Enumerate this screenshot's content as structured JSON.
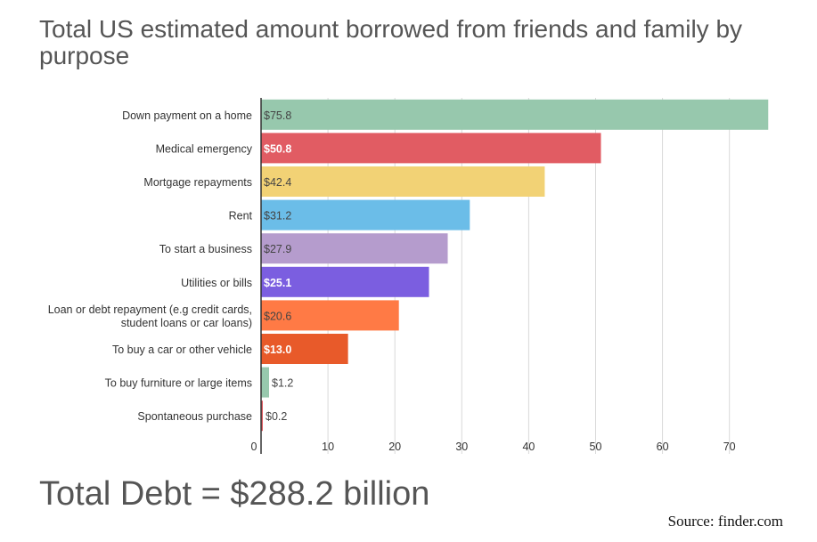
{
  "chart_data": {
    "type": "bar",
    "orientation": "horizontal",
    "title": "Total US estimated amount borrowed from friends and family by purpose",
    "categories": [
      "Down payment on a home",
      "Medical emergency",
      "Mortgage repayments",
      "Rent",
      "To start a business",
      "Utilities or bills",
      "Loan or debt repayment (e.g credit cards,\nstudent loans or car loans)",
      "To buy a car or other vehicle",
      "To buy furniture or large items",
      "Spontaneous purchase"
    ],
    "values": [
      75.8,
      50.8,
      42.4,
      31.2,
      27.9,
      25.1,
      20.6,
      13.0,
      1.2,
      0.2
    ],
    "data_labels": [
      "$75.8",
      "$50.8",
      "$42.4",
      "$31.2",
      "$27.9",
      "$25.1",
      "$20.6",
      "$13.0",
      "$1.2",
      "$0.2"
    ],
    "colors": [
      "#97c8ad",
      "#e15c63",
      "#f2d275",
      "#6bbde8",
      "#b59ccd",
      "#7b5ee0",
      "#ff7a45",
      "#e85a2a",
      "#97c8ad",
      "#e15c63"
    ],
    "label_colors": [
      "#444444",
      "#ffffff",
      "#444444",
      "#444444",
      "#444444",
      "#ffffff",
      "#444444",
      "#ffffff",
      "#444444",
      "#444444"
    ],
    "xlim": [
      0,
      78
    ],
    "xticks": [
      0,
      10,
      20,
      30,
      40,
      50,
      60,
      70
    ],
    "grid": true,
    "xlabel": "",
    "ylabel": ""
  },
  "footer": {
    "total": "Total Debt = $288.2 billion",
    "source": "Source: finder.com"
  }
}
